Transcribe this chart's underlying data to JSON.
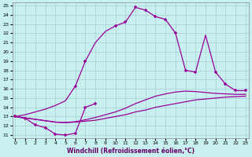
{
  "xlabel": "Windchill (Refroidissement éolien,°C)",
  "bg_color": "#c8f0f0",
  "line_color": "#990099",
  "xmin": 0,
  "xmax": 23,
  "ymin": 11,
  "ymax": 25,
  "curve1_x": [
    0,
    1,
    2,
    3,
    4,
    5,
    6,
    7,
    8
  ],
  "curve1_y": [
    13.0,
    12.8,
    12.1,
    11.8,
    11.1,
    11.0,
    11.2,
    14.0,
    14.4
  ],
  "curve2_x": [
    0,
    1,
    2,
    3,
    4,
    5,
    6,
    7,
    8,
    9,
    10,
    11,
    12,
    13,
    14,
    15,
    16,
    17,
    18,
    19,
    20,
    21,
    22,
    23
  ],
  "curve2_y": [
    13.0,
    12.85,
    12.7,
    12.55,
    12.4,
    12.35,
    12.4,
    12.5,
    12.6,
    12.8,
    13.0,
    13.2,
    13.5,
    13.7,
    14.0,
    14.2,
    14.4,
    14.6,
    14.8,
    14.9,
    15.0,
    15.1,
    15.15,
    15.2
  ],
  "curve3_x": [
    0,
    1,
    2,
    3,
    4,
    5,
    6,
    7,
    8,
    9,
    10,
    11,
    12,
    13,
    14,
    15,
    16,
    17,
    18,
    19,
    20,
    21,
    22,
    23
  ],
  "curve3_y": [
    13.0,
    12.85,
    12.7,
    12.55,
    12.4,
    12.35,
    12.45,
    12.65,
    12.9,
    13.2,
    13.5,
    13.9,
    14.4,
    14.8,
    15.2,
    15.45,
    15.65,
    15.75,
    15.7,
    15.6,
    15.5,
    15.45,
    15.4,
    15.4
  ],
  "curve4_x": [
    0,
    1,
    2,
    3,
    4,
    5,
    6,
    7,
    8,
    9,
    10,
    11,
    12,
    13,
    14,
    15,
    16,
    17,
    18,
    19,
    20,
    21,
    22,
    23
  ],
  "curve4_y": [
    13.0,
    13.2,
    13.5,
    13.8,
    14.2,
    14.7,
    16.3,
    19.0,
    21.0,
    22.2,
    22.8,
    23.2,
    24.8,
    24.5,
    23.8,
    23.5,
    22.0,
    18.0,
    17.8,
    21.8,
    17.8,
    16.5,
    15.8,
    15.8
  ],
  "curve4_marker_x": [
    0,
    6,
    7,
    10,
    11,
    12,
    13,
    14,
    15,
    16,
    17,
    18,
    20,
    21,
    22,
    23
  ],
  "curve4_marker_y": [
    13.0,
    16.3,
    19.0,
    22.8,
    23.2,
    24.8,
    24.5,
    23.8,
    23.5,
    22.0,
    18.0,
    17.8,
    17.8,
    16.5,
    15.8,
    15.8
  ],
  "xticks": [
    0,
    1,
    2,
    3,
    4,
    5,
    6,
    7,
    8,
    9,
    10,
    11,
    12,
    13,
    14,
    15,
    16,
    17,
    18,
    19,
    20,
    21,
    22,
    23
  ],
  "yticks": [
    11,
    12,
    13,
    14,
    15,
    16,
    17,
    18,
    19,
    20,
    21,
    22,
    23,
    24,
    25
  ]
}
